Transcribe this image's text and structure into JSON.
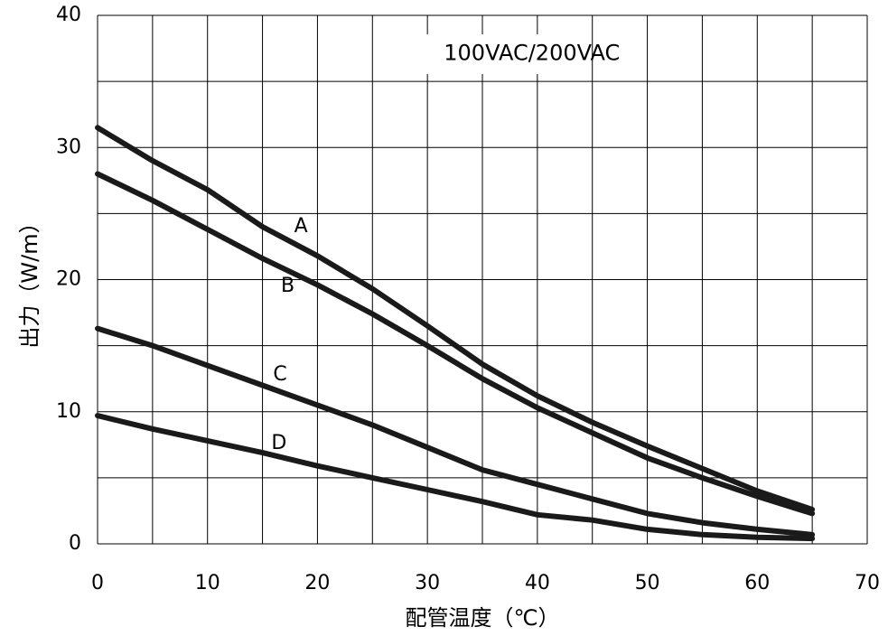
{
  "chart_data": {
    "type": "line",
    "title": "",
    "annotation": "100VAC/200VAC",
    "xlabel": "配管温度（℃）",
    "ylabel": "出力（W/m）",
    "xlim": [
      0,
      70
    ],
    "ylim": [
      0,
      40
    ],
    "xticks": [
      0,
      10,
      20,
      30,
      40,
      50,
      60,
      70
    ],
    "yticks": [
      0,
      10,
      20,
      30,
      40
    ],
    "grid": true,
    "series": [
      {
        "name": "A",
        "x": [
          0,
          5,
          10,
          15,
          20,
          25,
          30,
          35,
          40,
          45,
          50,
          55,
          60,
          65
        ],
        "y": [
          31.5,
          29,
          26.8,
          24,
          21.8,
          19.3,
          16.5,
          13.6,
          11.2,
          9.2,
          7.4,
          5.7,
          4.0,
          2.6
        ]
      },
      {
        "name": "B",
        "x": [
          0,
          5,
          10,
          15,
          20,
          25,
          30,
          35,
          40,
          45,
          50,
          55,
          60,
          65
        ],
        "y": [
          28,
          26,
          23.8,
          21.6,
          19.6,
          17.4,
          15,
          12.5,
          10.3,
          8.4,
          6.5,
          5.0,
          3.6,
          2.3
        ]
      },
      {
        "name": "C",
        "x": [
          0,
          5,
          10,
          15,
          20,
          25,
          30,
          35,
          40,
          45,
          50,
          55,
          60,
          65
        ],
        "y": [
          16.3,
          15,
          13.5,
          12,
          10.5,
          9,
          7.3,
          5.6,
          4.5,
          3.4,
          2.3,
          1.6,
          1.1,
          0.7
        ]
      },
      {
        "name": "D",
        "x": [
          0,
          5,
          10,
          15,
          20,
          25,
          30,
          35,
          40,
          45,
          50,
          55,
          60,
          65
        ],
        "y": [
          9.7,
          8.7,
          7.8,
          6.9,
          5.9,
          5,
          4.1,
          3.2,
          2.2,
          1.8,
          1.1,
          0.7,
          0.5,
          0.4
        ]
      }
    ],
    "series_labels": [
      {
        "name": "A",
        "x": 18.5,
        "y": 24
      },
      {
        "name": "B",
        "x": 17.3,
        "y": 19.5
      },
      {
        "name": "C",
        "x": 16.6,
        "y": 12.8
      },
      {
        "name": "D",
        "x": 16.5,
        "y": 7.6
      }
    ],
    "annotation_pos": {
      "x": 39.5,
      "y": 37.1
    }
  }
}
